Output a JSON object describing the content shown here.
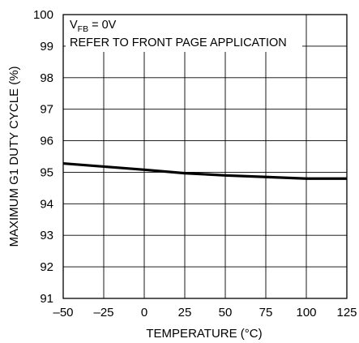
{
  "chart_data": {
    "type": "line",
    "title": "",
    "xlabel": "TEMPERATURE (°C)",
    "ylabel": "MAXIMUM G1 DUTY CYCLE (%)",
    "xlim": [
      -50,
      125
    ],
    "ylim": [
      91,
      100
    ],
    "x_ticks": [
      -50,
      -25,
      0,
      25,
      50,
      75,
      100,
      125
    ],
    "x_tick_labels": [
      "–50",
      "–25",
      "0",
      "25",
      "50",
      "75",
      "100",
      "125"
    ],
    "y_ticks": [
      91,
      92,
      93,
      94,
      95,
      96,
      97,
      98,
      99,
      100
    ],
    "y_tick_labels": [
      "91",
      "92",
      "93",
      "94",
      "95",
      "96",
      "97",
      "98",
      "99",
      "100"
    ],
    "grid": true,
    "annotations": {
      "line1_main": "V",
      "line1_sub": "FB",
      "line1_rest": " = 0V",
      "line2": "REFER TO FRONT PAGE APPLICATION"
    },
    "series": [
      {
        "color": "#000000",
        "x": [
          -50,
          -25,
          0,
          25,
          50,
          75,
          100,
          125
        ],
        "y": [
          95.28,
          95.18,
          95.08,
          94.97,
          94.9,
          94.85,
          94.8,
          94.8
        ]
      }
    ]
  }
}
